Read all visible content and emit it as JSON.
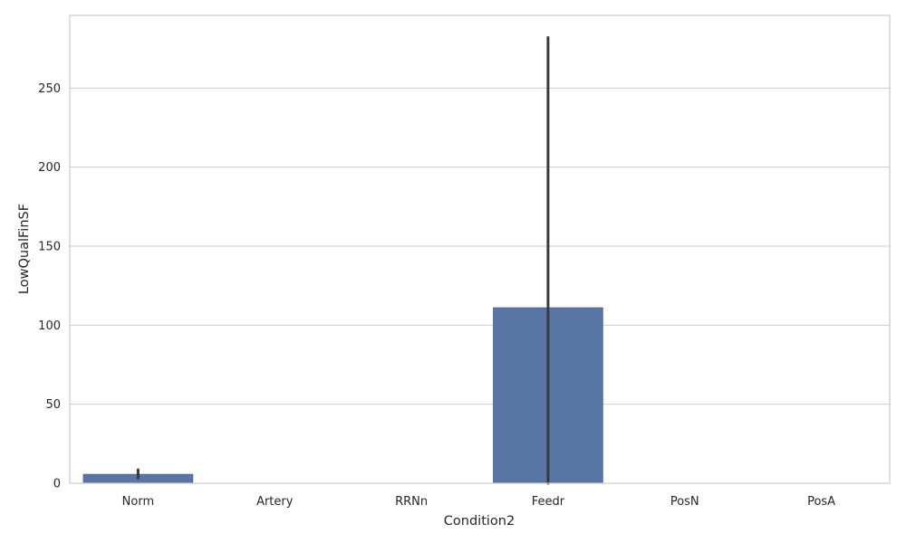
{
  "chart_data": {
    "type": "bar",
    "xlabel": "Condition2",
    "ylabel": "LowQualFinSF",
    "categories": [
      "Norm",
      "Artery",
      "RRNn",
      "Feedr",
      "PosN",
      "PosA"
    ],
    "values": [
      5.6,
      0,
      0,
      111,
      0,
      0
    ],
    "error_bars": [
      [
        3.3,
        8.5
      ],
      null,
      null,
      [
        0,
        282
      ],
      null,
      null
    ],
    "ylim": [
      0,
      296
    ],
    "yticks": [
      0,
      50,
      100,
      150,
      200,
      250
    ],
    "grid": true,
    "colors": {
      "bar": "#5875a4",
      "bar_edge": "#4c67a0",
      "error_bar": "#3a3a3a",
      "grid": "#cccccc",
      "frame": "#cccccc"
    }
  }
}
